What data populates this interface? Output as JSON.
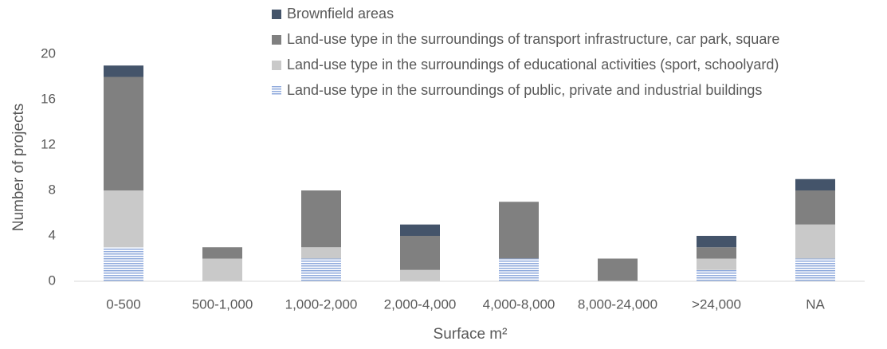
{
  "chart_data": {
    "type": "stacked_bar",
    "x_label": "Surface m²",
    "y_label": "Number of projects",
    "categories": [
      "0-500",
      "500-1,000",
      "1,000-2,000",
      "2,000-4,000",
      "4,000-8,000",
      "8,000-24,000",
      ">24,000",
      "NA"
    ],
    "series": [
      {
        "name": "Land-use type in the surroundings of public, private and industrial buildings",
        "color": "#8faadc",
        "pattern": "horizontal-lines",
        "values": [
          3,
          0,
          2,
          0,
          2,
          0,
          1,
          2
        ]
      },
      {
        "name": "Land-use type in the surroundings of educational activities (sport, schoolyard)",
        "color": "#c9c9c9",
        "values": [
          5,
          2,
          1,
          1,
          0,
          0,
          1,
          3
        ]
      },
      {
        "name": "Land-use type in the surroundings of transport infrastructure, car park, square",
        "color": "#808080",
        "values": [
          10,
          1,
          5,
          3,
          5,
          2,
          1,
          3
        ]
      },
      {
        "name": "Brownfield areas",
        "color": "#44546a",
        "values": [
          1,
          0,
          0,
          1,
          0,
          0,
          1,
          1
        ]
      }
    ],
    "ylim": [
      0,
      20
    ],
    "yticks": [
      0,
      4,
      8,
      12,
      16,
      20
    ],
    "grid": false,
    "legend": "top-right"
  }
}
